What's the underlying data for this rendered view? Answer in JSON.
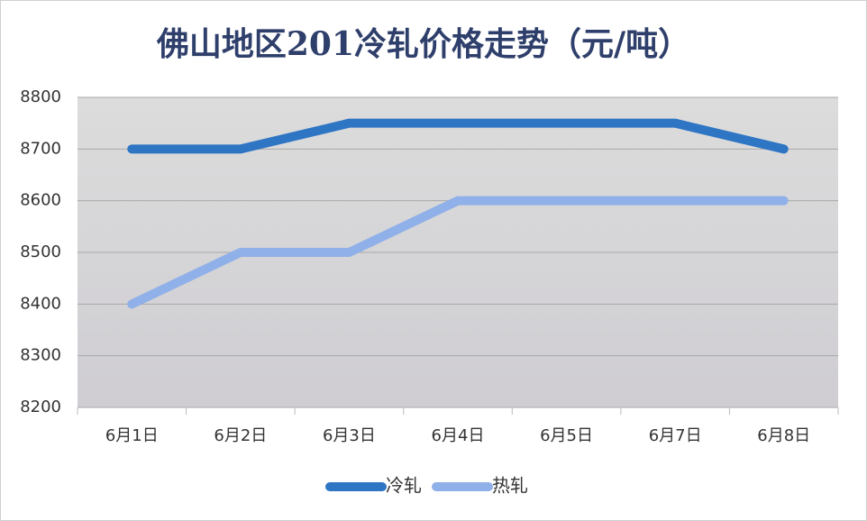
{
  "chart_data": {
    "type": "line",
    "title": "佛山地区201冷轧价格走势（元/吨）",
    "categories": [
      "6月1日",
      "6月2日",
      "6月3日",
      "6月4日",
      "6月5日",
      "6月7日",
      "6月8日"
    ],
    "series": [
      {
        "name": "冷轧",
        "color": "#2e75c4",
        "values": [
          8700,
          8700,
          8750,
          8750,
          8750,
          8750,
          8700
        ]
      },
      {
        "name": "热轧",
        "color": "#8fb0e8",
        "values": [
          8400,
          8500,
          8500,
          8600,
          8600,
          8600,
          8600
        ]
      }
    ],
    "ylim": [
      8200,
      8800
    ],
    "yticks": [
      8200,
      8300,
      8400,
      8500,
      8600,
      8700,
      8800
    ],
    "grid": true,
    "legend": "bottom"
  }
}
